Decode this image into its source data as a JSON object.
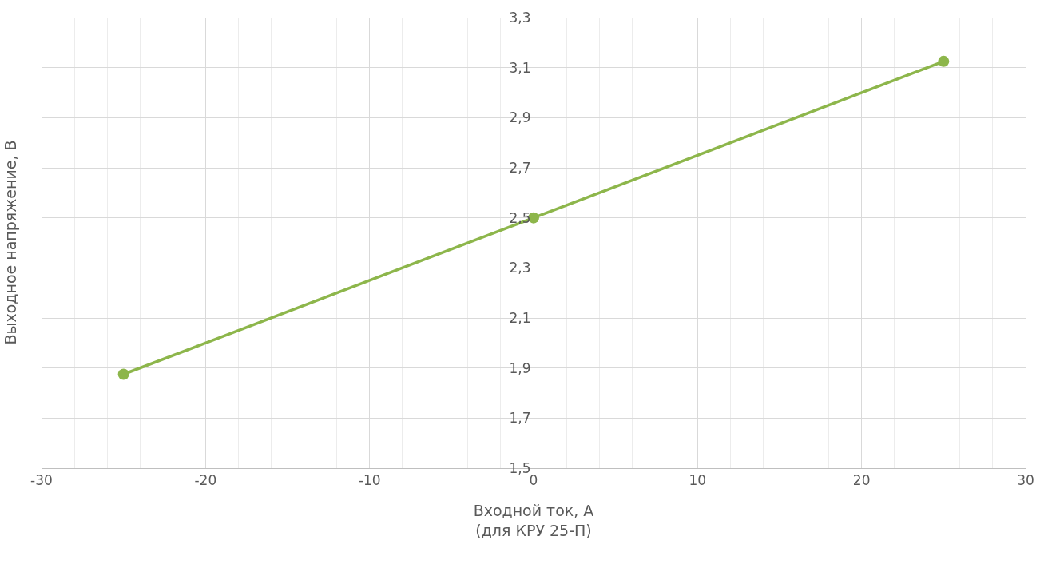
{
  "chart_data": {
    "type": "line",
    "xlabel": "Входной ток, А\n(для КРУ 25-П)",
    "ylabel": "Выходное напряжение, В",
    "x": [
      -25,
      0,
      25
    ],
    "series": [
      {
        "color": "#8db64b",
        "values": [
          1.875,
          2.5,
          3.125
        ]
      }
    ],
    "marker": "circle",
    "line_style": "solid",
    "grid": true,
    "xlim": [
      -30,
      30
    ],
    "xticks": [
      -30,
      {
        "value": -28,
        "label": null
      },
      {
        "value": -26,
        "label": null
      },
      {
        "value": -24,
        "label": null
      },
      {
        "value": -22,
        "label": null
      },
      -20,
      {
        "value": -18,
        "label": null
      },
      {
        "value": -16,
        "label": null
      },
      {
        "value": -14,
        "label": null
      },
      {
        "value": -12,
        "label": null
      },
      -10,
      {
        "value": -8,
        "label": null
      },
      {
        "value": -6,
        "label": null
      },
      {
        "value": -4,
        "label": null
      },
      {
        "value": -2,
        "label": null
      },
      0,
      {
        "value": 2,
        "label": null
      },
      {
        "value": 4,
        "label": null
      },
      {
        "value": 6,
        "label": null
      },
      {
        "value": 8,
        "label": null
      },
      10,
      {
        "value": 12,
        "label": null
      },
      {
        "value": 14,
        "label": null
      },
      {
        "value": 16,
        "label": null
      },
      {
        "value": 18,
        "label": null
      },
      20,
      {
        "value": 22,
        "label": null
      },
      {
        "value": 24,
        "label": null
      },
      {
        "value": 26,
        "label": null
      },
      {
        "value": 28,
        "label": null
      },
      30
    ],
    "ylim": [
      1.5,
      3.3
    ],
    "yticks": [
      {
        "value": 1.5,
        "label": "1,5"
      },
      {
        "value": 1.7,
        "label": "1,7"
      },
      {
        "value": 1.9,
        "label": "1,9"
      },
      {
        "value": 2.1,
        "label": "2,1"
      },
      {
        "value": 2.3,
        "label": "2,3"
      },
      {
        "value": 2.5,
        "label": "2,5"
      },
      {
        "value": 2.7,
        "label": "2,7"
      },
      {
        "value": 2.9,
        "label": "2,9"
      },
      {
        "value": 3.1,
        "label": "3,1"
      },
      {
        "value": 3.3,
        "label": "3,3"
      }
    ]
  }
}
